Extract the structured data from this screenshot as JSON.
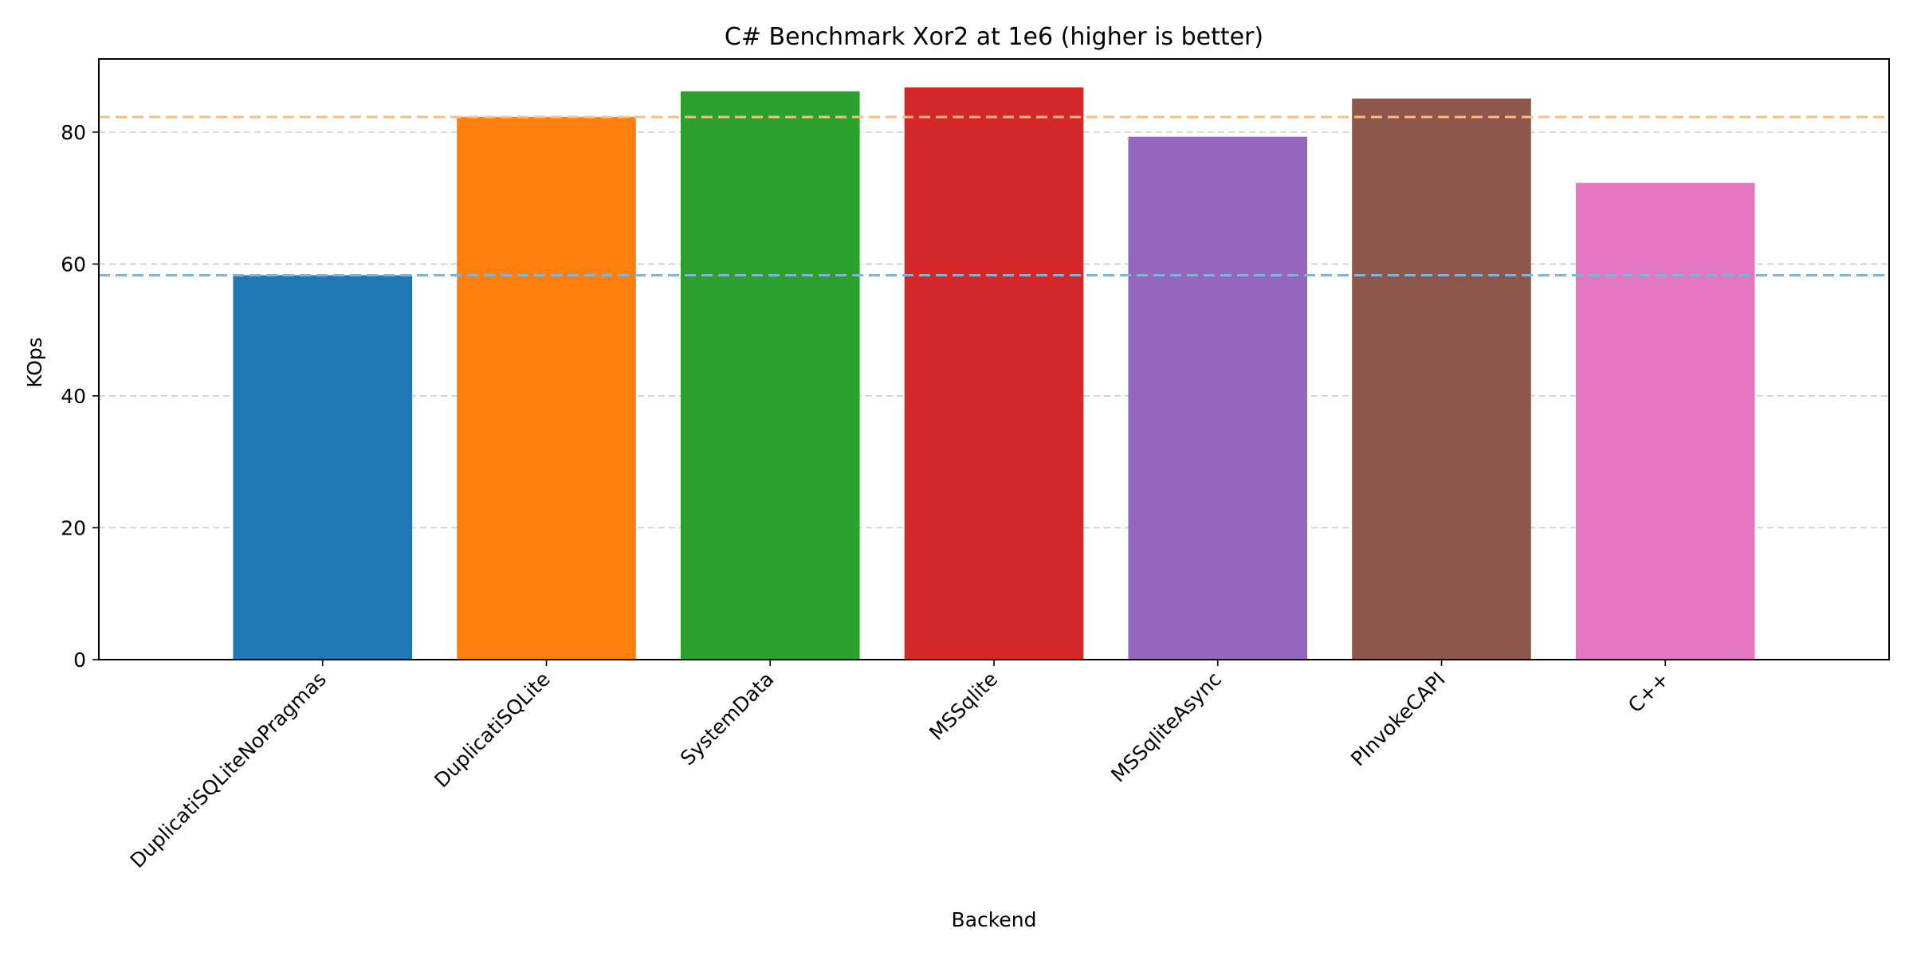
{
  "chart_data": {
    "type": "bar",
    "title": "C# Benchmark Xor2 at 1e6 (higher is better)",
    "xlabel": "Backend",
    "ylabel": "KOps",
    "categories": [
      "DuplicatiSQLiteNoPragmas",
      "DuplicatiSQLite",
      "SystemData",
      "MSSqlite",
      "MSSqliteAsync",
      "PInvokeCAPI",
      "C++"
    ],
    "values": [
      58.3,
      82.3,
      86.2,
      86.8,
      79.3,
      85.1,
      72.3
    ],
    "bar_colors": [
      "#1f77b4",
      "#ff7f0e",
      "#2ca02c",
      "#d62728",
      "#9467bd",
      "#8c564b",
      "#e377c2"
    ],
    "yticks": [
      0,
      20,
      40,
      60,
      80
    ],
    "ylim": [
      0,
      91.1
    ],
    "grid": "horizontal dashed",
    "reference_lines": [
      {
        "value": 82.3,
        "color": "#ffbb78"
      },
      {
        "value": 58.3,
        "color": "#7fb3d9"
      }
    ]
  }
}
